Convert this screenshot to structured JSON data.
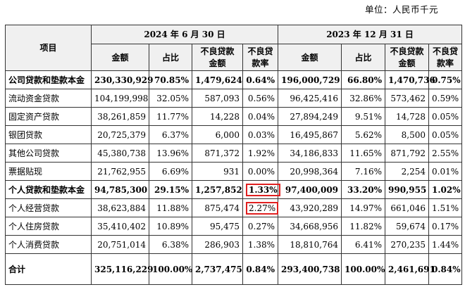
{
  "unit_label": "单位：人民币千元",
  "header": {
    "item": "项目",
    "period1": "2024 年 6 月 30 日",
    "period2": "2023 年 12 月 31 日",
    "amount": "金额",
    "ratio": "占比",
    "npl_amount_l1": "不良贷款",
    "npl_amount_l2": "金额",
    "npl_rate_l1": "不良贷",
    "npl_rate_l2": "款率"
  },
  "rows": [
    {
      "label": "公司贷款和垫款本金",
      "bold": true,
      "p1": [
        "230,330,929",
        "70.85%",
        "1,479,624",
        "0.64%"
      ],
      "p2": [
        "196,000,729",
        "66.80%",
        "1,470,736",
        "0.75%"
      ]
    },
    {
      "label": "流动资金贷款",
      "bold": false,
      "p1": [
        "104,199,998",
        "32.05%",
        "587,093",
        "0.56%"
      ],
      "p2": [
        "96,425,416",
        "32.86%",
        "573,462",
        "0.59%"
      ]
    },
    {
      "label": "固定资产贷款",
      "bold": false,
      "p1": [
        "38,261,859",
        "11.77%",
        "14,228",
        "0.04%"
      ],
      "p2": [
        "27,894,249",
        "9.51%",
        "14,728",
        "0.05%"
      ]
    },
    {
      "label": "银团贷款",
      "bold": false,
      "p1": [
        "20,725,379",
        "6.37%",
        "6,000",
        "0.03%"
      ],
      "p2": [
        "16,495,867",
        "5.62%",
        "8,500",
        "0.05%"
      ]
    },
    {
      "label": "其他公司贷款",
      "bold": false,
      "p1": [
        "45,380,738",
        "13.96%",
        "871,372",
        "1.92%"
      ],
      "p2": [
        "34,186,833",
        "11.65%",
        "871,792",
        "2.55%"
      ]
    },
    {
      "label": "票据贴现",
      "bold": false,
      "p1": [
        "21,762,955",
        "6.69%",
        "931",
        "0.00%"
      ],
      "p2": [
        "20,998,364",
        "7.16%",
        "2,254",
        "0.01%"
      ]
    },
    {
      "label": "个人贷款和垫款本金",
      "bold": true,
      "p1": [
        "94,785,300",
        "29.15%",
        "1,257,852",
        "1.33%"
      ],
      "p2": [
        "97,400,009",
        "33.20%",
        "990,955",
        "1.02%"
      ]
    },
    {
      "label": "个人经营贷款",
      "bold": false,
      "p1": [
        "38,623,884",
        "11.88%",
        "875,474",
        "2.27%"
      ],
      "p2": [
        "43,920,289",
        "14.97%",
        "661,046",
        "1.51%"
      ]
    },
    {
      "label": "个人住房贷款",
      "bold": false,
      "p1": [
        "35,410,402",
        "10.89%",
        "95,475",
        "0.27%"
      ],
      "p2": [
        "34,668,956",
        "11.82%",
        "59,674",
        "0.17%"
      ]
    },
    {
      "label": "个人消费贷款",
      "bold": false,
      "p1": [
        "20,751,014",
        "6.38%",
        "286,903",
        "1.38%"
      ],
      "p2": [
        "18,810,764",
        "6.41%",
        "270,235",
        "1.44%"
      ]
    }
  ],
  "total": {
    "label": "合计",
    "p1": [
      "325,116,229",
      "100.00%",
      "2,737,475",
      "0.84%"
    ],
    "p2": [
      "293,400,738",
      "100.00%",
      "2,461,691",
      "0.84%"
    ]
  },
  "highlight_color": "#e02020",
  "header_bg": "#f0f0f0"
}
